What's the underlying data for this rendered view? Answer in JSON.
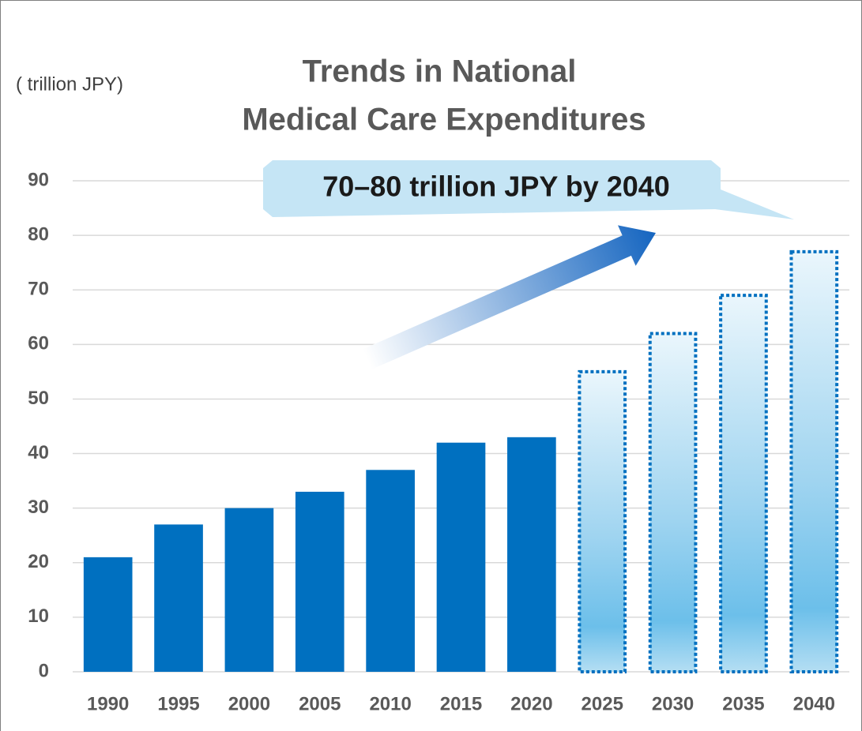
{
  "chart_data": {
    "type": "bar",
    "title_lines": [
      "Trends in National",
      "Medical Care Expenditures"
    ],
    "y_label": "( trillion JPY)",
    "annotation": "70–80 trillion JPY by 2040",
    "categories": [
      "1990",
      "1995",
      "2000",
      "2005",
      "2010",
      "2015",
      "2020",
      "2025",
      "2030",
      "2035",
      "2040"
    ],
    "series": [
      {
        "color": "#0070c0",
        "style": "solid",
        "values": [
          21,
          27,
          30,
          33,
          37,
          42,
          43,
          null,
          null,
          null,
          null
        ]
      },
      {
        "color": "#0070c0",
        "style": "dotted-gradient",
        "values": [
          null,
          null,
          null,
          null,
          null,
          null,
          null,
          55,
          62,
          69,
          77
        ]
      }
    ],
    "ylim": [
      0,
      90
    ],
    "yticks": [
      0,
      10,
      20,
      30,
      40,
      50,
      60,
      70,
      80,
      90
    ],
    "grid": true
  }
}
